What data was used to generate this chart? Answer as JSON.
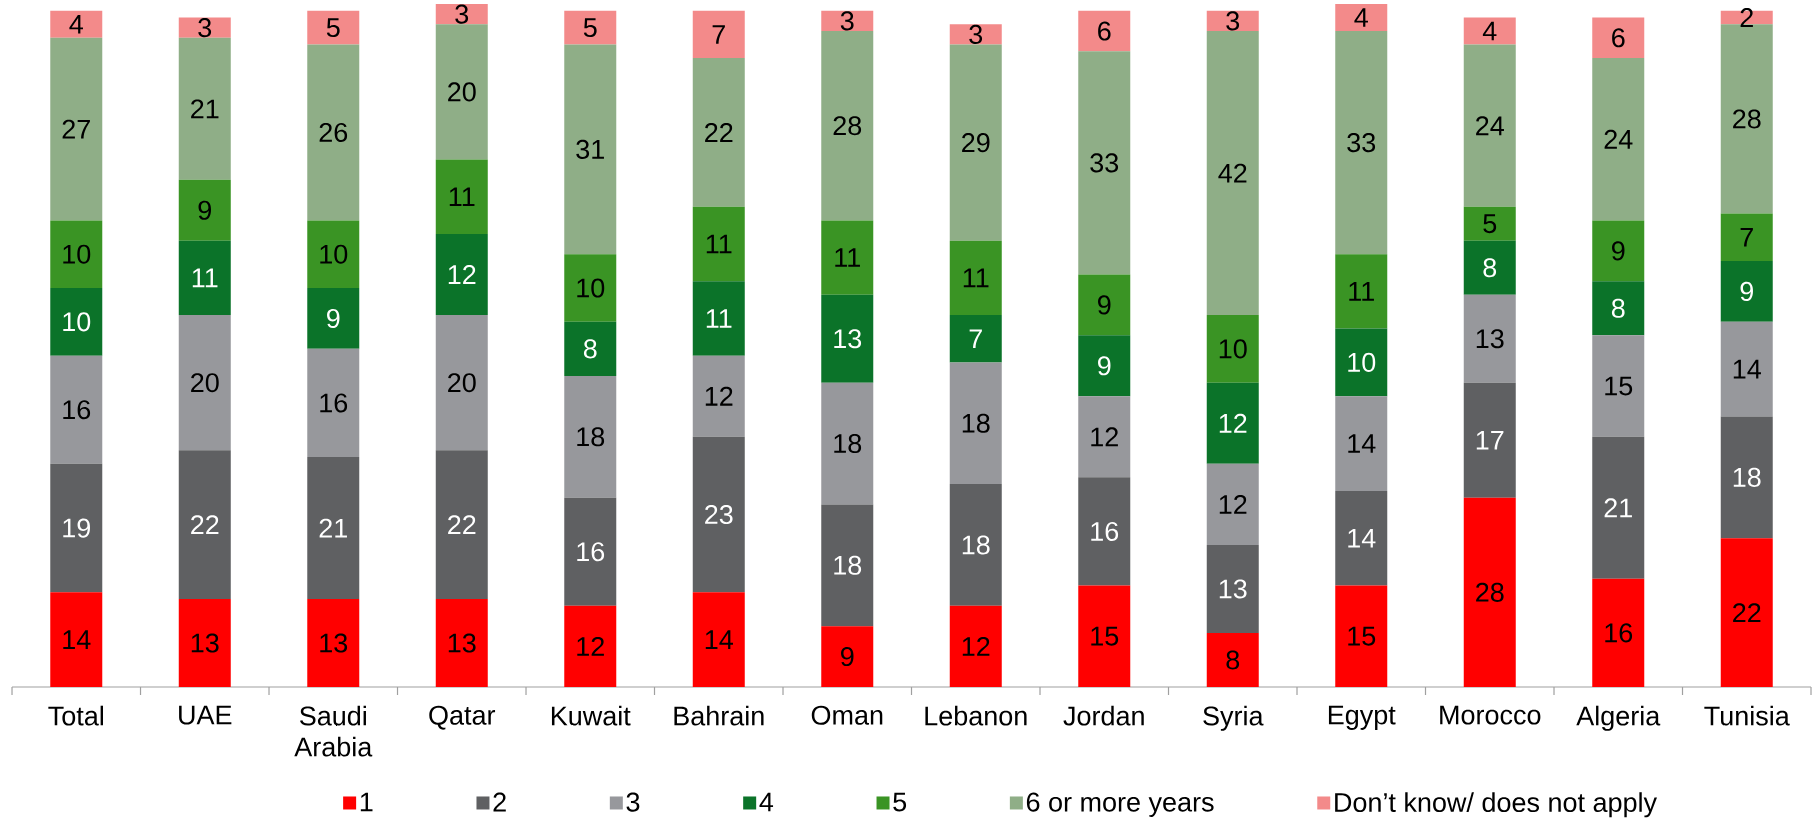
{
  "chart_data": {
    "type": "bar",
    "stacked": true,
    "data_labels": true,
    "legend": "bottom",
    "categories": [
      "Total",
      "UAE",
      "Saudi Arabia",
      "Qatar",
      "Kuwait",
      "Bahrain",
      "Oman",
      "Lebanon",
      "Jordan",
      "Syria",
      "Egypt",
      "Morocco",
      "Algeria",
      "Tunisia"
    ],
    "series": [
      {
        "name": "1",
        "color": "#ff0000",
        "values": [
          14,
          13,
          13,
          13,
          12,
          14,
          9,
          12,
          15,
          8,
          15,
          28,
          16,
          22
        ]
      },
      {
        "name": "2",
        "color": "#5f6062",
        "values": [
          19,
          22,
          21,
          22,
          16,
          23,
          18,
          18,
          16,
          13,
          14,
          17,
          21,
          18
        ]
      },
      {
        "name": "3",
        "color": "#97989c",
        "values": [
          16,
          20,
          16,
          20,
          18,
          12,
          18,
          18,
          12,
          12,
          14,
          13,
          15,
          14
        ]
      },
      {
        "name": "4",
        "color": "#0b7329",
        "values": [
          10,
          11,
          9,
          12,
          8,
          11,
          13,
          7,
          9,
          12,
          10,
          8,
          8,
          9
        ]
      },
      {
        "name": "5",
        "color": "#3a9424",
        "values": [
          10,
          9,
          10,
          11,
          10,
          11,
          11,
          11,
          9,
          10,
          11,
          5,
          9,
          7
        ]
      },
      {
        "name": "6 or more years",
        "color": "#8fae87",
        "values": [
          27,
          21,
          26,
          20,
          31,
          22,
          28,
          29,
          33,
          42,
          33,
          24,
          24,
          28
        ]
      },
      {
        "name": "Don’t know/ does not apply",
        "color": "#f38a8a",
        "values": [
          4,
          3,
          5,
          3,
          5,
          7,
          3,
          3,
          6,
          3,
          4,
          4,
          6,
          2
        ]
      }
    ]
  }
}
